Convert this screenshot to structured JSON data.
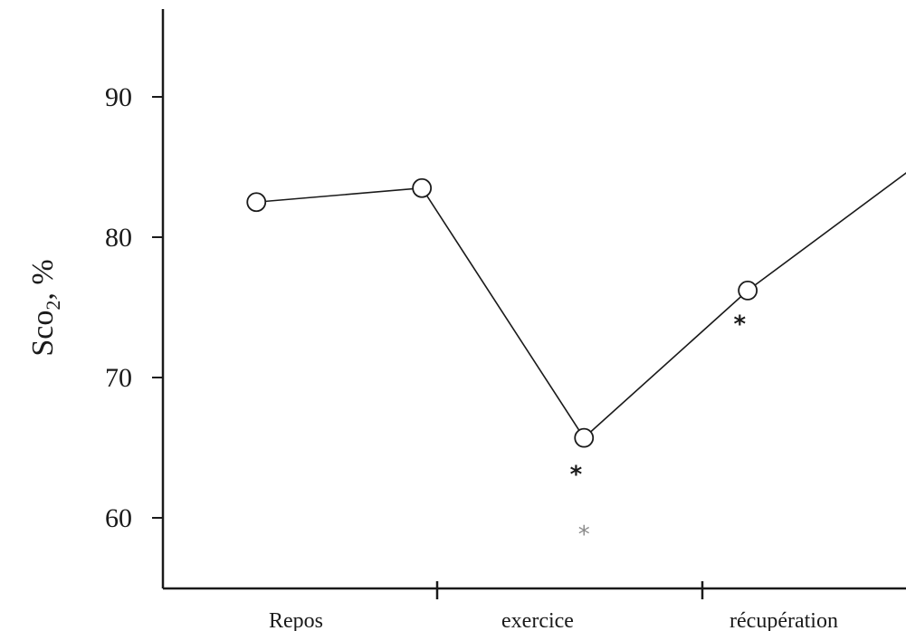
{
  "chart_data": {
    "type": "line",
    "ylabel": {
      "main": "Sco",
      "sub": "2",
      "suffix": ", %"
    },
    "xlabel": "",
    "title": "",
    "ylim": [
      55,
      96
    ],
    "yticks": [
      60,
      70,
      80,
      90
    ],
    "categories": [
      "Repos",
      "exercice",
      "récupération"
    ],
    "series": [
      {
        "points": [
          {
            "group": 0,
            "pos": 0.35,
            "y": 82.5
          },
          {
            "group": 0,
            "pos": 0.97,
            "y": 83.5
          },
          {
            "group": 1,
            "pos": 0.55,
            "y": 65.7
          },
          {
            "group": 2,
            "pos": 0.17,
            "y": 76.2
          },
          {
            "group": 2,
            "pos": 0.97,
            "y": 87.5
          }
        ]
      }
    ],
    "annotations": [
      {
        "text": "*",
        "group": 1,
        "pos": 0.52,
        "y": 63.2,
        "style": "bold"
      },
      {
        "text": "*",
        "group": 1,
        "pos": 0.55,
        "y": 58.9,
        "style": "light"
      },
      {
        "text": "*",
        "group": 2,
        "pos": 0.14,
        "y": 73.9,
        "style": "bold"
      },
      {
        "text": "*",
        "group": 2,
        "pos": 0.92,
        "y": 83.5,
        "style": "bold"
      }
    ],
    "grid": false,
    "legend": "none"
  }
}
